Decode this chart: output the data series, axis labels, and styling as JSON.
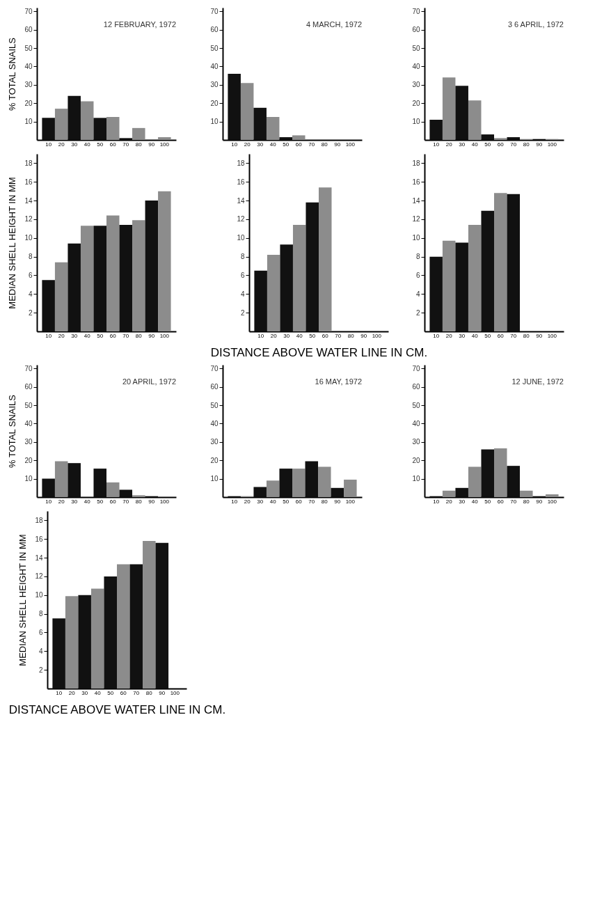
{
  "chart_data": [
    {
      "type": "bar",
      "title": "12 FEBRUARY, 1972",
      "ylabel": "% TOTAL SNAILS",
      "categories": [
        "10",
        "20",
        "30",
        "40",
        "50",
        "60",
        "70",
        "80",
        "90",
        "100"
      ],
      "values": [
        12,
        17,
        24,
        21,
        12,
        12.5,
        1,
        6.5,
        0,
        1.5
      ],
      "colors": [
        "#111111",
        "#8c8c8c",
        "#111111",
        "#8c8c8c",
        "#111111",
        "#8c8c8c",
        "#111111",
        "#8c8c8c",
        "#111111",
        "#8c8c8c"
      ],
      "ylim": [
        0,
        72
      ],
      "yticks": [
        10,
        20,
        30,
        40,
        50,
        60,
        70
      ]
    },
    {
      "type": "bar",
      "title": "4 MARCH, 1972",
      "categories": [
        "10",
        "20",
        "30",
        "40",
        "50",
        "60",
        "70",
        "80",
        "90",
        "100"
      ],
      "values": [
        36,
        31,
        17.5,
        12.5,
        1.5,
        2.5,
        0,
        0,
        0,
        0
      ],
      "colors": [
        "#111111",
        "#8c8c8c",
        "#111111",
        "#8c8c8c",
        "#111111",
        "#8c8c8c",
        "#111111",
        "#8c8c8c",
        "#111111",
        "#8c8c8c"
      ],
      "ylim": [
        0,
        72
      ],
      "yticks": [
        10,
        20,
        30,
        40,
        50,
        60,
        70
      ]
    },
    {
      "type": "bar",
      "title": "3 6 APRIL, 1972",
      "categories": [
        "10",
        "20",
        "30",
        "40",
        "50",
        "60",
        "70",
        "80",
        "90",
        "100"
      ],
      "values": [
        11,
        34,
        29.5,
        21.5,
        3,
        1,
        1.5,
        0.5,
        0.5,
        0.5
      ],
      "colors": [
        "#111111",
        "#8c8c8c",
        "#111111",
        "#8c8c8c",
        "#111111",
        "#8c8c8c",
        "#111111",
        "#8c8c8c",
        "#111111",
        "#8c8c8c"
      ],
      "ylim": [
        0,
        72
      ],
      "yticks": [
        10,
        20,
        30,
        40,
        50,
        60,
        70
      ]
    },
    {
      "type": "bar",
      "ylabel": "MEDIAN SHELL HEIGHT IN MM",
      "categories": [
        "10",
        "20",
        "30",
        "40",
        "50",
        "60",
        "70",
        "80",
        "90",
        "100"
      ],
      "values": [
        5.5,
        7.4,
        9.4,
        11.3,
        11.3,
        12.4,
        11.4,
        11.9,
        14,
        15
      ],
      "colors": [
        "#111111",
        "#8c8c8c",
        "#111111",
        "#8c8c8c",
        "#111111",
        "#8c8c8c",
        "#111111",
        "#8c8c8c",
        "#111111",
        "#8c8c8c"
      ],
      "ylim": [
        0,
        19
      ],
      "yticks": [
        2,
        4,
        6,
        8,
        10,
        12,
        14,
        16,
        18
      ]
    },
    {
      "type": "bar",
      "xlabel": "DISTANCE ABOVE WATER LINE IN CM.",
      "categories": [
        "10",
        "20",
        "30",
        "40",
        "50",
        "60",
        "70",
        "80",
        "90",
        "100"
      ],
      "values": [
        6.5,
        8.2,
        9.3,
        11.4,
        13.8,
        15.4,
        0,
        0,
        0,
        0
      ],
      "colors": [
        "#111111",
        "#8c8c8c",
        "#111111",
        "#8c8c8c",
        "#111111",
        "#8c8c8c",
        "#111111",
        "#8c8c8c",
        "#111111",
        "#8c8c8c"
      ],
      "ylim": [
        0,
        19
      ],
      "yticks": [
        2,
        4,
        6,
        8,
        10,
        12,
        14,
        16,
        18
      ]
    },
    {
      "type": "bar",
      "categories": [
        "10",
        "20",
        "30",
        "40",
        "50",
        "60",
        "70",
        "80",
        "90",
        "100"
      ],
      "values": [
        8,
        9.7,
        9.5,
        11.4,
        12.9,
        14.8,
        14.7,
        0,
        0,
        0
      ],
      "colors": [
        "#111111",
        "#8c8c8c",
        "#111111",
        "#8c8c8c",
        "#111111",
        "#8c8c8c",
        "#111111",
        "#8c8c8c",
        "#111111",
        "#8c8c8c"
      ],
      "ylim": [
        0,
        19
      ],
      "yticks": [
        2,
        4,
        6,
        8,
        10,
        12,
        14,
        16,
        18
      ]
    },
    {
      "type": "bar",
      "title": "20 APRIL, 1972",
      "ylabel": "% TOTAL SNAILS",
      "categories": [
        "10",
        "20",
        "30",
        "40",
        "50",
        "60",
        "70",
        "80",
        "90",
        "100"
      ],
      "values": [
        10,
        19.5,
        18.5,
        0,
        15.5,
        8,
        4,
        1,
        0.5,
        0
      ],
      "colors": [
        "#111111",
        "#8c8c8c",
        "#111111",
        "#8c8c8c",
        "#111111",
        "#8c8c8c",
        "#111111",
        "#8c8c8c",
        "#111111",
        "#8c8c8c"
      ],
      "ylim": [
        0,
        72
      ],
      "yticks": [
        10,
        20,
        30,
        40,
        50,
        60,
        70
      ]
    },
    {
      "type": "bar",
      "title": "16 MAY, 1972",
      "categories": [
        "10",
        "20",
        "30",
        "40",
        "50",
        "60",
        "70",
        "80",
        "90",
        "100"
      ],
      "values": [
        0.5,
        0.5,
        5.5,
        9,
        15.5,
        15.5,
        19.5,
        16.5,
        5,
        9.5
      ],
      "colors": [
        "#111111",
        "#8c8c8c",
        "#111111",
        "#8c8c8c",
        "#111111",
        "#8c8c8c",
        "#111111",
        "#8c8c8c",
        "#111111",
        "#8c8c8c"
      ],
      "ylim": [
        0,
        72
      ],
      "yticks": [
        10,
        20,
        30,
        40,
        50,
        60,
        70
      ]
    },
    {
      "type": "bar",
      "title": "12 JUNE, 1972",
      "categories": [
        "10",
        "20",
        "30",
        "40",
        "50",
        "60",
        "70",
        "80",
        "90",
        "100"
      ],
      "values": [
        0.5,
        3.5,
        5,
        16.5,
        26,
        26.5,
        17,
        3.5,
        0.5,
        1.5
      ],
      "colors": [
        "#111111",
        "#8c8c8c",
        "#111111",
        "#8c8c8c",
        "#111111",
        "#8c8c8c",
        "#111111",
        "#8c8c8c",
        "#111111",
        "#8c8c8c"
      ],
      "ylim": [
        0,
        72
      ],
      "yticks": [
        10,
        20,
        30,
        40,
        50,
        60,
        70
      ]
    },
    {
      "type": "bar",
      "xlabel": "DISTANCE ABOVE WATER LINE IN CM.",
      "ylabel": "MEDIAN SHELL HEIGHT IN MM",
      "categories": [
        "10",
        "20",
        "30",
        "40",
        "50",
        "60",
        "70",
        "80",
        "90",
        "100"
      ],
      "values": [
        7.5,
        9.9,
        10,
        10.7,
        12,
        13.3,
        13.3,
        15.8,
        15.6,
        0
      ],
      "colors": [
        "#111111",
        "#8c8c8c",
        "#111111",
        "#8c8c8c",
        "#111111",
        "#8c8c8c",
        "#111111",
        "#8c8c8c",
        "#111111",
        "#8c8c8c"
      ],
      "ylim": [
        0,
        19
      ],
      "yticks": [
        2,
        4,
        6,
        8,
        10,
        12,
        14,
        16,
        18
      ]
    }
  ]
}
